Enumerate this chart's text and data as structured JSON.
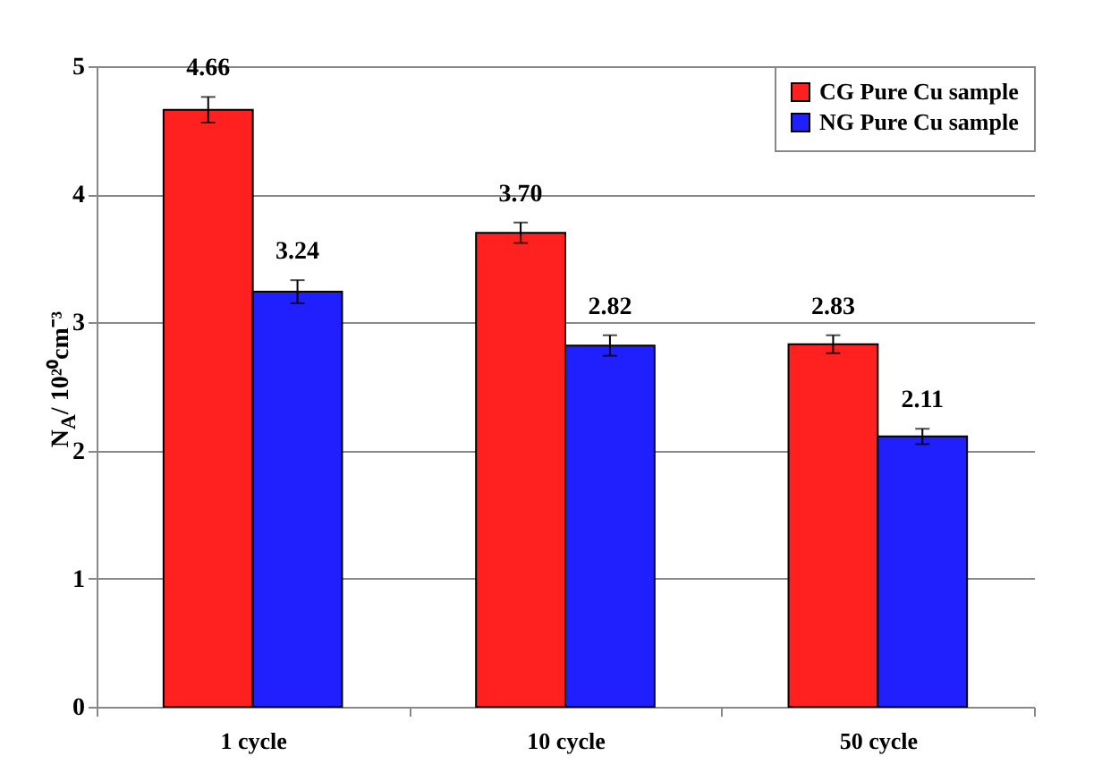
{
  "chart_data": {
    "type": "bar",
    "ylabel": "N$_{A}$/ 10²⁰cm⁻³",
    "categories": [
      "1 cycle",
      "10 cycle",
      "50 cycle"
    ],
    "series": [
      {
        "name": "CG Pure Cu sample",
        "color": "#ff2020",
        "values": [
          4.66,
          3.7,
          2.83
        ],
        "errors": [
          0.1,
          0.08,
          0.07
        ],
        "value_labels": [
          "4.66",
          "3.70",
          "2.83"
        ]
      },
      {
        "name": "NG Pure Cu sample",
        "color": "#2020ff",
        "values": [
          3.24,
          2.82,
          2.11
        ],
        "errors": [
          0.09,
          0.08,
          0.06
        ],
        "value_labels": [
          "3.24",
          "2.82",
          "2.11"
        ]
      }
    ],
    "ylim": [
      0,
      5
    ],
    "yticks": [
      0,
      1,
      2,
      3,
      4,
      5
    ],
    "grid": "y",
    "legend": "top right"
  }
}
